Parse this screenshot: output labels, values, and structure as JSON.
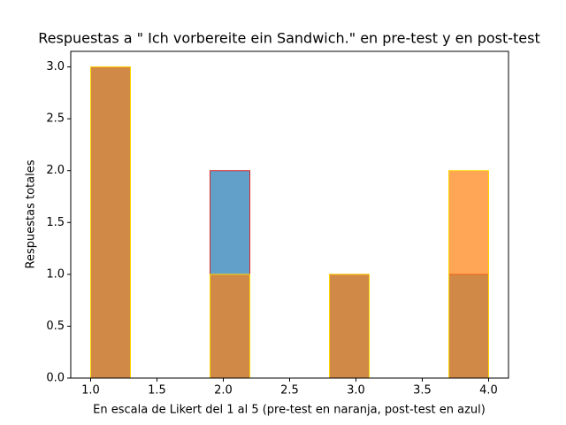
{
  "chart_data": {
    "type": "histogram",
    "title": "Respuestas a \" Ich vorbereite ein Sandwich.\" en pre-test y en post-test",
    "xlabel": "En escala de Likert del 1 al 5 (pre-test en naranja, post-test en azul)",
    "ylabel": "Respuestas totales",
    "bins": [
      1.0,
      1.3,
      1.6,
      1.9,
      2.2,
      2.5,
      2.8,
      3.1,
      3.4,
      3.7,
      4.0
    ],
    "series": [
      {
        "color": "#1f77b4",
        "edgecolor": "#d62728",
        "values": [
          3,
          0,
          0,
          2,
          0,
          0,
          1,
          0,
          0,
          1
        ]
      },
      {
        "color": "#ff7f0e",
        "edgecolor": "#ffd700",
        "values": [
          3,
          0,
          0,
          1,
          0,
          0,
          1,
          0,
          0,
          2
        ]
      }
    ],
    "alpha": 0.7,
    "xlim": [
      0.85,
      4.15
    ],
    "ylim": [
      0,
      3.15
    ],
    "xticks": [
      {
        "value": 1,
        "label": "1.0"
      },
      {
        "value": 1.5,
        "label": "1.5"
      },
      {
        "value": 2,
        "label": "2.0"
      },
      {
        "value": 2.5,
        "label": "2.5"
      },
      {
        "value": 3,
        "label": "3.0"
      },
      {
        "value": 3.5,
        "label": "3.5"
      },
      {
        "value": 4,
        "label": "4.0"
      }
    ],
    "yticks": [
      {
        "value": 0,
        "label": "0.0"
      },
      {
        "value": 0.5,
        "label": "0.5"
      },
      {
        "value": 1,
        "label": "1.0"
      },
      {
        "value": 1.5,
        "label": "1.5"
      },
      {
        "value": 2,
        "label": "2.0"
      },
      {
        "value": 2.5,
        "label": "2.5"
      },
      {
        "value": 3,
        "label": "3.0"
      }
    ]
  }
}
